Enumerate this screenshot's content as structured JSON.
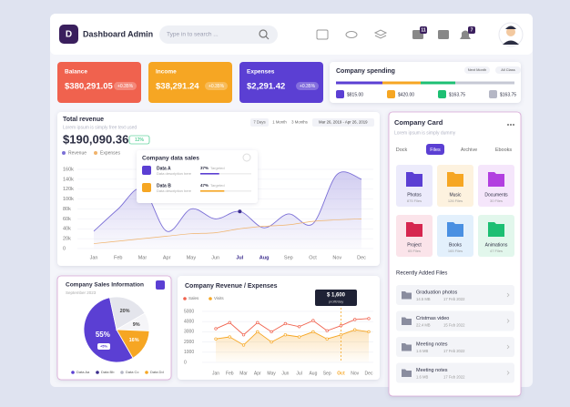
{
  "header": {
    "logo": "D",
    "title": "Dashboard Admin",
    "search_placeholder": "Type in to search ...",
    "badges": [
      "11",
      "7"
    ]
  },
  "stats": [
    {
      "label": "Balance",
      "value": "$380,291.05",
      "change": "+0.35%",
      "color": "#f0624e"
    },
    {
      "label": "Income",
      "value": "$38,291.24",
      "change": "+0.35%",
      "color": "#f6a623"
    },
    {
      "label": "Expenses",
      "value": "$2,291.42",
      "change": "+0.35%",
      "color": "#5b3fd3"
    }
  ],
  "spending": {
    "title": "Company spending",
    "filters": [
      "Next Month",
      "All Class"
    ],
    "items": [
      "$815.00",
      "$420.00",
      "$163.75",
      "$163.75"
    ]
  },
  "revenue": {
    "title": "Total revenue",
    "subtitle": "Lorem ipsum is simply free text used",
    "total": "$190,090.36",
    "change": "12%",
    "ranges": [
      "7 Days",
      "1 Month",
      "3 Months"
    ],
    "date_range": "Mar 26, 2019 - Apr 26, 2019",
    "chart_data": {
      "type": "area",
      "categories": [
        "Jan",
        "Feb",
        "Mar",
        "Apr",
        "May",
        "Jun",
        "Jul",
        "Aug",
        "Sep",
        "Oct",
        "Nov",
        "Dec"
      ],
      "series": [
        {
          "name": "Revenue",
          "color": "#7b6fd6",
          "values": [
            35000,
            80000,
            121000,
            35000,
            80000,
            60000,
            75000,
            42000,
            70000,
            50000,
            150000,
            140000
          ]
        },
        {
          "name": "Expenses",
          "color": "#f0b36b",
          "values": [
            10000,
            15000,
            20000,
            25000,
            30000,
            32000,
            40000,
            45000,
            48000,
            55000,
            58000,
            60000
          ]
        }
      ],
      "ylim": [
        0,
        160000
      ],
      "yticks": [
        0,
        {
          "value": 20000,
          "label": "20k"
        },
        {
          "value": 40000,
          "label": "40k"
        },
        {
          "value": 60000,
          "label": "60k"
        },
        {
          "value": 80000,
          "label": "80k"
        },
        {
          "value": 100000,
          "label": "100k"
        },
        {
          "value": 120000,
          "label": "120k"
        },
        {
          "value": 140000,
          "label": "140k"
        },
        {
          "value": 160000,
          "label": "160k"
        }
      ]
    },
    "popup": {
      "title": "Company data sales",
      "items": [
        {
          "name": "Data A",
          "desc": "Data description here",
          "percent": {
            "value": 37,
            "label": "37%"
          },
          "tag": "Targeted"
        },
        {
          "name": "Data B",
          "desc": "Data description here",
          "percent": {
            "value": 47,
            "label": "47%"
          },
          "tag": "Targeted"
        }
      ]
    }
  },
  "sales": {
    "title": "Company Sales Information",
    "subtitle": "September 2023",
    "badge": "+5%",
    "chart_data": {
      "type": "pie",
      "categories": [
        "Data Aa",
        "Data Bb",
        "Data Cc",
        "Data Dd"
      ],
      "values": [
        55,
        20,
        9,
        16
      ],
      "value_labels": [
        "55%",
        "20%",
        "9%",
        "16%"
      ],
      "colors": [
        "#5b3fd3",
        "#e4e5ec",
        "#f5f5f8",
        "#f6a623"
      ]
    }
  },
  "compare": {
    "title": "Company Revenue / Expenses",
    "tooltip": {
      "value": "$ 1,600",
      "label": "profit/day"
    },
    "chart_data": {
      "type": "line",
      "categories": [
        "Jan",
        "Feb",
        "Mar",
        "Apr",
        "May",
        "Jun",
        "Jul",
        "Aug",
        "Sep",
        "Oct",
        "Nov",
        "Dec"
      ],
      "series": [
        {
          "name": "Sales",
          "color": "#f0624e",
          "values": [
            3300,
            3900,
            2700,
            3900,
            3000,
            3800,
            3500,
            4100,
            3100,
            3600,
            4200,
            4300
          ]
        },
        {
          "name": "Visits",
          "color": "#f6a623",
          "values": [
            2300,
            2500,
            1700,
            3000,
            2000,
            2700,
            2500,
            3000,
            2300,
            2700,
            3200,
            3000
          ]
        }
      ],
      "ylim": [
        0,
        5000
      ],
      "yticks": [
        0,
        1000,
        2000,
        3000,
        4000,
        5000
      ]
    }
  },
  "card": {
    "title": "Company Card",
    "subtitle": "Lorem ipsum is simply dummy",
    "tabs": [
      "Dock",
      "Files",
      "Archive",
      "Ebooks"
    ],
    "active_tab": 1,
    "folders": [
      {
        "name": "Photos",
        "count": "875 Files",
        "color": "#5b3fd3",
        "bg": "#ecebfb"
      },
      {
        "name": "Music",
        "count": "126 Files",
        "color": "#f6a623",
        "bg": "#fdf2df"
      },
      {
        "name": "Documents",
        "count": "30 Files",
        "color": "#b23fe0",
        "bg": "#f5e6fb"
      },
      {
        "name": "Project",
        "count": "65 Files",
        "color": "#d6264f",
        "bg": "#fbe4ea"
      },
      {
        "name": "Books",
        "count": "165 Files",
        "color": "#4a90e2",
        "bg": "#e3f0fc"
      },
      {
        "name": "Animations",
        "count": "47 Files",
        "color": "#1dbf73",
        "bg": "#e2f7ec"
      }
    ],
    "recent_title": "Recently Added Files",
    "recent": [
      {
        "name": "Graduation photos",
        "size": "14.5 MB",
        "date": "17 Feb 2022"
      },
      {
        "name": "Cristmas video",
        "size": "22.4 MB",
        "date": "15 Feb 2022"
      },
      {
        "name": "Meeting notes",
        "size": "1.6 MB",
        "date": "17 Feb 2022"
      },
      {
        "name": "Meeting notes",
        "size": "1.6 MB",
        "date": "17 Feb 2022"
      }
    ]
  }
}
